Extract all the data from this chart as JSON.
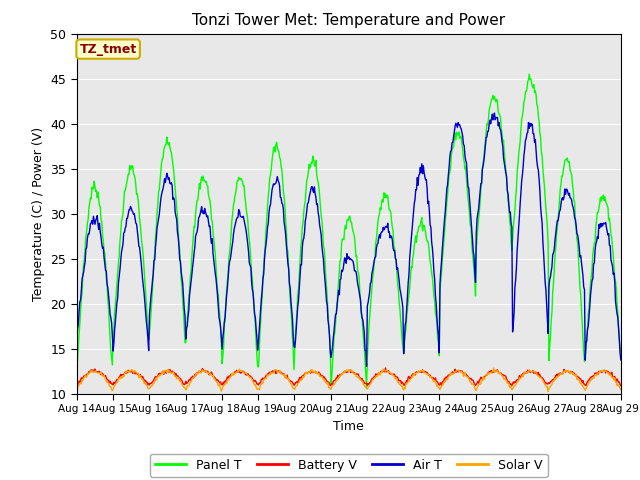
{
  "title": "Tonzi Tower Met: Temperature and Power",
  "xlabel": "Time",
  "ylabel": "Temperature (C) / Power (V)",
  "ylim": [
    10,
    50
  ],
  "yticks": [
    10,
    15,
    20,
    25,
    30,
    35,
    40,
    45,
    50
  ],
  "x_tick_labels": [
    "Aug 14",
    "Aug 15",
    "Aug 16",
    "Aug 17",
    "Aug 18",
    "Aug 19",
    "Aug 20",
    "Aug 21",
    "Aug 22",
    "Aug 23",
    "Aug 24",
    "Aug 25",
    "Aug 26",
    "Aug 27",
    "Aug 28",
    "Aug 29"
  ],
  "annotation_text": "TZ_tmet",
  "annotation_color": "#8B0000",
  "annotation_bg": "#FFFFCC",
  "annotation_border": "#CCAA00",
  "background_color": "#E8E8E8",
  "line_colors": {
    "panel_t": "#00FF00",
    "battery_v": "#FF0000",
    "air_t": "#0000CC",
    "solar_v": "#FFA500"
  },
  "legend_labels": [
    "Panel T",
    "Battery V",
    "Air T",
    "Solar V"
  ],
  "n_days": 15,
  "pts_per_day": 48,
  "panel_peaks": [
    33,
    35,
    38,
    34,
    34,
    37.5,
    36,
    29.5,
    32,
    29,
    39,
    43,
    45,
    36,
    32
  ],
  "panel_troughs": [
    12.5,
    16,
    16,
    16,
    13,
    13,
    15,
    11,
    15,
    14.5,
    21,
    26,
    27,
    13.5,
    14
  ],
  "air_peaks": [
    29.5,
    30.5,
    34,
    30.5,
    30,
    33.5,
    32.5,
    25.5,
    28.5,
    35,
    40,
    41,
    40,
    32.5,
    29
  ],
  "air_troughs": [
    16.5,
    15,
    18.5,
    16,
    15,
    15.5,
    15,
    14,
    19.5,
    14.5,
    22.5,
    28,
    16.5,
    21.5,
    14
  ],
  "batt_base": 11.0,
  "batt_amp": 1.5,
  "solar_base": 10.5,
  "solar_amp": 2.0
}
